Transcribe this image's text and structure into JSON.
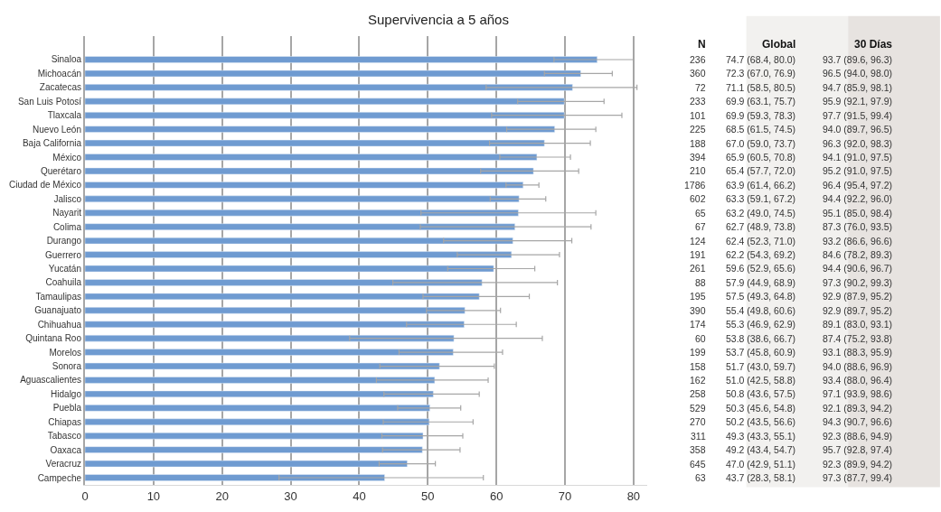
{
  "chart_data": [
    {
      "type": "bar",
      "title": "Supervivencia a 5 años",
      "orientation": "horizontal",
      "categories": [
        "Sinaloa",
        "Michoacán",
        "Zacatecas",
        "San Luis Potosí",
        "Tlaxcala",
        "Nuevo León",
        "Baja California",
        "México",
        "Querétaro",
        "Ciudad de México",
        "Jalisco",
        "Nayarit",
        "Colima",
        "Durango",
        "Guerrero",
        "Yucatán",
        "Coahuila",
        "Tamaulipas",
        "Guanajuato",
        "Chihuahua",
        "Quintana Roo",
        "Morelos",
        "Sonora",
        "Aguascalientes",
        "Hidalgo",
        "Puebla",
        "Chiapas",
        "Tabasco",
        "Oaxaca",
        "Veracruz",
        "Campeche"
      ],
      "values": [
        74.7,
        72.3,
        71.1,
        69.9,
        69.9,
        68.5,
        67.0,
        65.9,
        65.4,
        63.9,
        63.3,
        63.2,
        62.7,
        62.4,
        62.2,
        59.6,
        57.9,
        57.5,
        55.4,
        55.3,
        53.8,
        53.7,
        51.7,
        51.0,
        50.8,
        50.3,
        50.2,
        49.3,
        49.2,
        47.0,
        43.7
      ],
      "errors": [
        [
          68.4,
          80.0
        ],
        [
          67.0,
          76.9
        ],
        [
          58.5,
          80.5
        ],
        [
          63.1,
          75.7
        ],
        [
          59.3,
          78.3
        ],
        [
          61.5,
          74.5
        ],
        [
          59.0,
          73.7
        ],
        [
          60.5,
          70.8
        ],
        [
          57.7,
          72.0
        ],
        [
          61.4,
          66.2
        ],
        [
          59.1,
          67.2
        ],
        [
          49.0,
          74.5
        ],
        [
          48.9,
          73.8
        ],
        [
          52.3,
          71.0
        ],
        [
          54.3,
          69.2
        ],
        [
          52.9,
          65.6
        ],
        [
          44.9,
          68.9
        ],
        [
          49.3,
          64.8
        ],
        [
          49.8,
          60.6
        ],
        [
          46.9,
          62.9
        ],
        [
          38.6,
          66.7
        ],
        [
          45.8,
          60.9
        ],
        [
          43.0,
          59.7
        ],
        [
          42.5,
          58.8
        ],
        [
          43.6,
          57.5
        ],
        [
          45.6,
          54.8
        ],
        [
          43.5,
          56.6
        ],
        [
          43.3,
          55.1
        ],
        [
          43.4,
          54.7
        ],
        [
          42.9,
          51.1
        ],
        [
          28.3,
          58.1
        ]
      ],
      "color": "#6f9bd1",
      "xlim": [
        0,
        82
      ],
      "xticks": [
        0,
        10,
        20,
        30,
        40,
        50,
        60,
        70,
        80
      ],
      "grid": "x"
    },
    {
      "type": "other",
      "categories": [
        "N",
        "Global",
        "30 Días"
      ],
      "cell_labels": [
        [
          "236",
          "74.7 (68.4, 80.0)",
          "93.7 (89.6, 96.3)"
        ],
        [
          "360",
          "72.3 (67.0, 76.9)",
          "96.5 (94.0, 98.0)"
        ],
        [
          "72",
          "71.1 (58.5, 80.5)",
          "94.7 (85.9, 98.1)"
        ],
        [
          "233",
          "69.9 (63.1, 75.7)",
          "95.9 (92.1, 97.9)"
        ],
        [
          "101",
          "69.9 (59.3, 78.3)",
          "97.7 (91.5, 99.4)"
        ],
        [
          "225",
          "68.5 (61.5, 74.5)",
          "94.0 (89.7, 96.5)"
        ],
        [
          "188",
          "67.0 (59.0, 73.7)",
          "96.3 (92.0, 98.3)"
        ],
        [
          "394",
          "65.9 (60.5, 70.8)",
          "94.1 (91.0, 97.5)"
        ],
        [
          "210",
          "65.4 (57.7, 72.0)",
          "95.2 (91.0, 97.5)"
        ],
        [
          "1786",
          "63.9 (61.4, 66.2)",
          "96.4 (95.4, 97.2)"
        ],
        [
          "602",
          "63.3 (59.1, 67.2)",
          "94.4 (92.2, 96.0)"
        ],
        [
          "65",
          "63.2 (49.0, 74.5)",
          "95.1 (85.0, 98.4)"
        ],
        [
          "67",
          "62.7 (48.9, 73.8)",
          "87.3 (76.0, 93.5)"
        ],
        [
          "124",
          "62.4 (52.3, 71.0)",
          "93.2 (86.6, 96.6)"
        ],
        [
          "191",
          "62.2 (54.3, 69.2)",
          "84.6 (78.2, 89.3)"
        ],
        [
          "261",
          "59.6 (52.9, 65.6)",
          "94.4 (90.6, 96.7)"
        ],
        [
          "88",
          "57.9 (44.9, 68.9)",
          "97.3 (90.2, 99.3)"
        ],
        [
          "195",
          "57.5 (49.3, 64.8)",
          "92.9 (87.9, 95.2)"
        ],
        [
          "390",
          "55.4 (49.8, 60.6)",
          "92.9 (89.7, 95.2)"
        ],
        [
          "174",
          "55.3 (46.9, 62.9)",
          "89.1 (83.0, 93.1)"
        ],
        [
          "60",
          "53.8 (38.6, 66.7)",
          "87.4 (75.2, 93.8)"
        ],
        [
          "199",
          "53.7 (45.8, 60.9)",
          "93.1 (88.3, 95.9)"
        ],
        [
          "158",
          "51.7 (43.0, 59.7)",
          "94.0 (88.6, 96.9)"
        ],
        [
          "162",
          "51.0 (42.5, 58.8)",
          "93.4 (88.0, 96.4)"
        ],
        [
          "258",
          "50.8 (43.6, 57.5)",
          "97.1 (93.9, 98.6)"
        ],
        [
          "529",
          "50.3 (45.6, 54.8)",
          "92.1 (89.3, 94.2)"
        ],
        [
          "270",
          "50.2 (43.5, 56.6)",
          "94.3 (90.7, 96.6)"
        ],
        [
          "311",
          "49.3 (43.3, 55.1)",
          "92.3 (88.6, 94.9)"
        ],
        [
          "358",
          "49.2 (43.4, 54.7)",
          "95.7 (92.8, 97.4)"
        ],
        [
          "645",
          "47.0 (42.9, 51.1)",
          "92.3 (89.9, 94.2)"
        ],
        [
          "63",
          "43.7 (28.3, 58.1)",
          "97.3 (87.7, 99.4)"
        ]
      ]
    }
  ]
}
